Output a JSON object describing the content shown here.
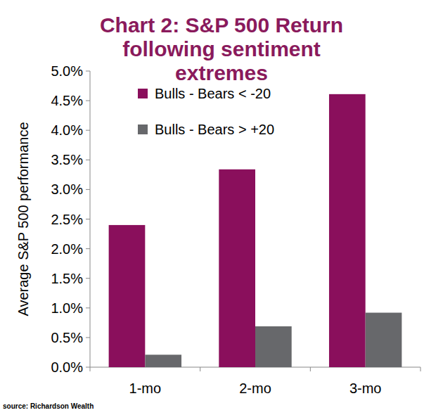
{
  "chart_data": {
    "type": "bar",
    "title": "Chart 2: S&P 500 Return following sentiment extremes",
    "y_label": "Average S&P 500 performance",
    "source": "source: Richardson Wealth",
    "categories": [
      "1-mo",
      "2-mo",
      "3-mo"
    ],
    "series": [
      {
        "name": "Bulls - Bears < -20",
        "color": "#8a0f5c",
        "values": [
          2.4,
          3.34,
          4.61
        ]
      },
      {
        "name": "Bulls - Bears > +20",
        "color": "#67686b",
        "values": [
          0.21,
          0.69,
          0.92
        ]
      }
    ],
    "ylim": [
      0,
      5
    ],
    "yticks": [
      {
        "value": 0,
        "label": "0.0%"
      },
      {
        "value": 0.5,
        "label": "0.5%"
      },
      {
        "value": 1,
        "label": "1.0%"
      },
      {
        "value": 1.5,
        "label": "1.5%"
      },
      {
        "value": 2,
        "label": "2.0%"
      },
      {
        "value": 2.5,
        "label": "2.5%"
      },
      {
        "value": 3,
        "label": "3.0%"
      },
      {
        "value": 3.5,
        "label": "3.5%"
      },
      {
        "value": 4,
        "label": "4.0%"
      },
      {
        "value": 4.5,
        "label": "4.5%"
      },
      {
        "value": 5,
        "label": "5.0%"
      }
    ],
    "grid": false,
    "legend": "top"
  }
}
